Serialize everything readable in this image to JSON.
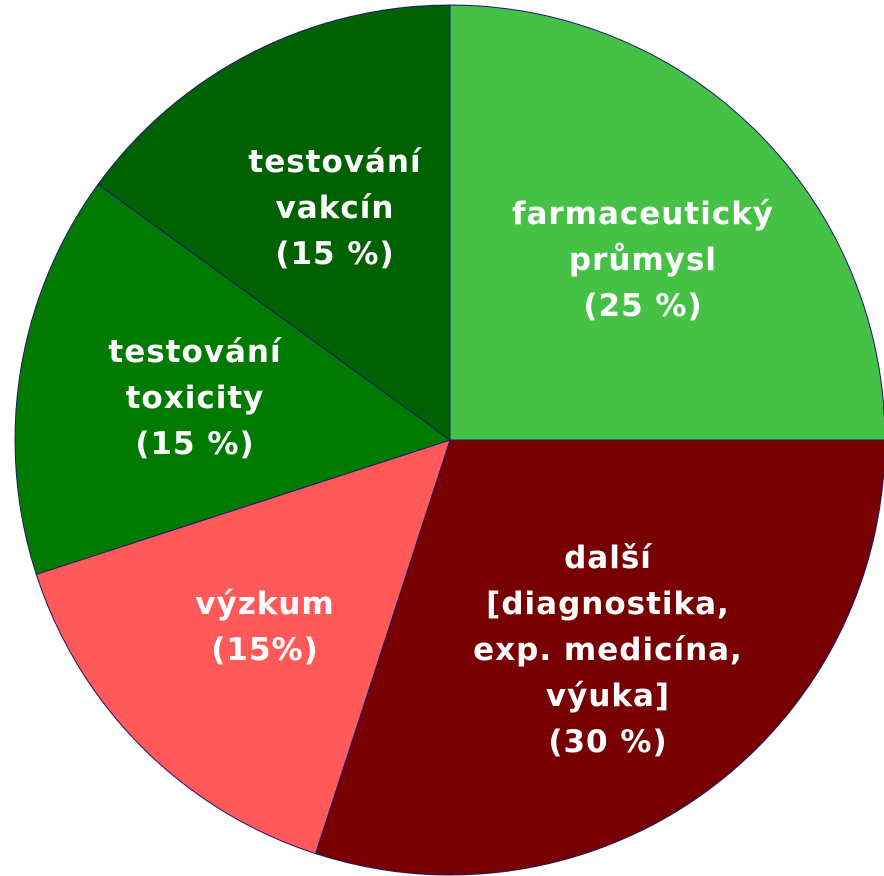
{
  "chart_data": {
    "type": "pie",
    "categories": [
      "farmaceutický\nprůmysl",
      "další\n[diagnostika,\nexp. medicína,\nvýuka]",
      "výzkum",
      "testování\ntoxicity",
      "testování\nvakcín"
    ],
    "values": [
      25,
      30,
      15,
      15,
      15
    ],
    "value_labels": [
      "(25 %)",
      "(30 %)",
      "(15%)",
      "(15 %)",
      "(15 %)"
    ],
    "colors": [
      "#45c145",
      "#780000",
      "#ff5959",
      "#007b00",
      "#006100"
    ]
  }
}
